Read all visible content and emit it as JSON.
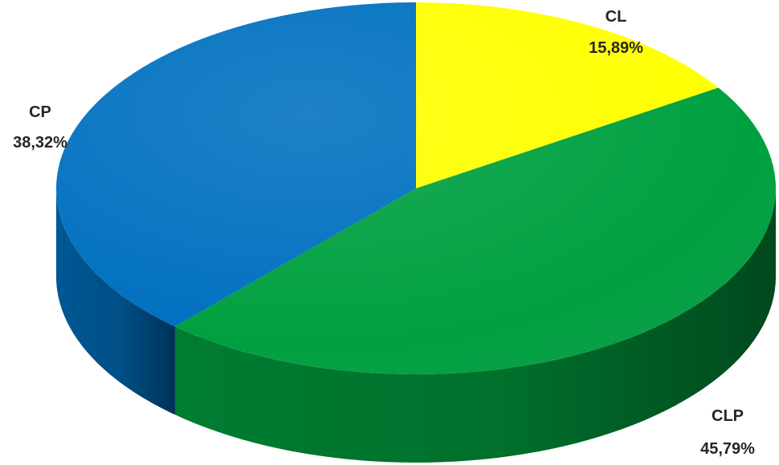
{
  "chart_data": {
    "type": "pie",
    "style": "3d",
    "title": "",
    "slices": [
      {
        "name": "CL",
        "value": 15.89,
        "label": "15,89%",
        "color": "#FFFF00"
      },
      {
        "name": "CLP",
        "value": 45.79,
        "label": "45,79%",
        "color": "#00A040"
      },
      {
        "name": "CP",
        "value": 38.32,
        "label": "38,32%",
        "color": "#0070C0"
      }
    ],
    "legend": "none"
  }
}
